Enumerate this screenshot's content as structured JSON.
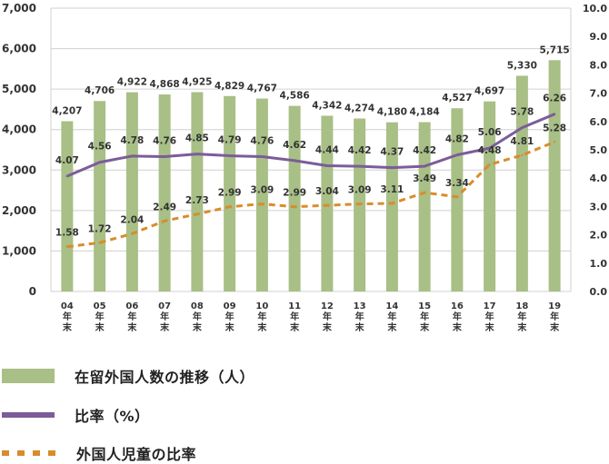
{
  "chart_data": {
    "type": "bar",
    "categories": [
      "04\n年\n末",
      "05\n年\n末",
      "06\n年\n末",
      "07\n年\n末",
      "08\n年\n末",
      "09\n年\n末",
      "10\n年\n末",
      "11\n年\n末",
      "12\n年\n末",
      "13\n年\n末",
      "14\n年\n末",
      "15\n年\n末",
      "16\n年\n末",
      "17\n年\n末",
      "18\n年\n末",
      "19\n年\n末"
    ],
    "series": [
      {
        "name": "在留外国人数の推移（人）",
        "type": "bar",
        "axis": "left",
        "color": "#a8bf86",
        "values": [
          4207,
          4706,
          4922,
          4868,
          4925,
          4829,
          4767,
          4586,
          4342,
          4274,
          4180,
          4184,
          4527,
          4697,
          5330,
          5715
        ],
        "labels": [
          "4,207",
          "4,706",
          "4,922",
          "4,868",
          "4,925",
          "4,829",
          "4,767",
          "4,586",
          "4,342",
          "4,274",
          "4,180",
          "4,184",
          "4,527",
          "4,697",
          "5,330",
          "5,715"
        ]
      },
      {
        "name": "比率（%）",
        "type": "line",
        "axis": "right",
        "color": "#7c5c99",
        "values": [
          4.07,
          4.56,
          4.78,
          4.76,
          4.85,
          4.79,
          4.76,
          4.62,
          4.44,
          4.42,
          4.37,
          4.42,
          4.82,
          5.06,
          5.78,
          6.26
        ],
        "labels": [
          "4.07",
          "4.56",
          "4.78",
          "4.76",
          "4.85",
          "4.79",
          "4.76",
          "4.62",
          "4.44",
          "4.42",
          "4.37",
          "4.42",
          "4.82",
          "5.06",
          "5.78",
          "6.26"
        ]
      },
      {
        "name": "外国人児童の比率",
        "type": "line",
        "style": "dashed",
        "axis": "right",
        "color": "#d98c2b",
        "values": [
          1.58,
          1.72,
          2.04,
          2.49,
          2.73,
          2.99,
          3.09,
          2.99,
          3.04,
          3.09,
          3.11,
          3.49,
          3.34,
          4.48,
          4.81,
          5.28
        ],
        "labels": [
          "1.58",
          "1.72",
          "2.04",
          "2.49",
          "2.73",
          "2.99",
          "3.09",
          "2.99",
          "3.04",
          "3.09",
          "3.11",
          "3.49",
          "3.34",
          "4.48",
          "4.81",
          "5.28"
        ]
      }
    ],
    "ylim_left": [
      0,
      7000
    ],
    "yticks_left": [
      "0",
      "1,000",
      "2,000",
      "3,000",
      "4,000",
      "5,000",
      "6,000",
      "7,000"
    ],
    "ylim_right": [
      0,
      10
    ],
    "yticks_right": [
      "0.0",
      "1.0",
      "2.0",
      "3.0",
      "4.0",
      "5.0",
      "6.0",
      "7.0",
      "8.0",
      "9.0",
      "10.0"
    ],
    "grid": true,
    "legend_position": "bottom"
  },
  "legend": {
    "bars": "在留外国人数の推移（人）",
    "ratio": "比率（%）",
    "children": "外国人児童の比率"
  },
  "colors": {
    "bar": "#a8bf86",
    "ratio_line": "#7c5c99",
    "children_line": "#d98c2b",
    "grid": "#cfcfcf"
  }
}
